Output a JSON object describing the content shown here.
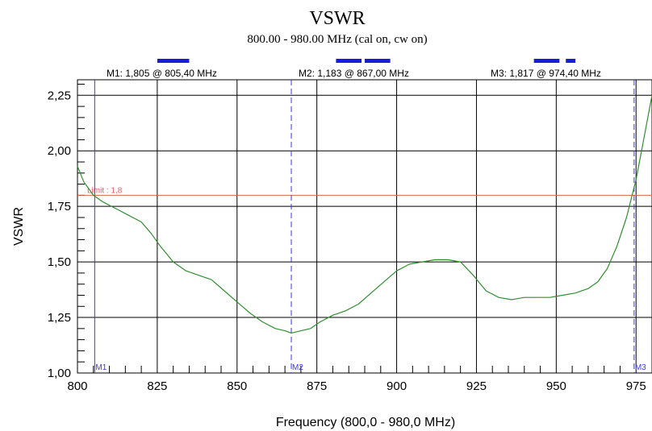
{
  "chart_data": {
    "type": "line",
    "title": "VSWR",
    "subtitle": "800.00 - 980.00 MHz (cal on, cw on)",
    "xlabel": "Frequency (800,0 - 980,0 MHz)",
    "ylabel": "VSWR",
    "xlim": [
      800,
      980
    ],
    "ylim": [
      1.0,
      2.32
    ],
    "x_ticks": [
      "800",
      "825",
      "850",
      "875",
      "900",
      "925",
      "950",
      "975"
    ],
    "x_tick_values": [
      800,
      825,
      850,
      875,
      900,
      925,
      950,
      975
    ],
    "y_ticks": [
      "1,00",
      "1,25",
      "1,50",
      "1,75",
      "2,00",
      "2,25"
    ],
    "y_tick_values": [
      1.0,
      1.25,
      1.5,
      1.75,
      2.0,
      2.25
    ],
    "grid": true,
    "limit": {
      "label": "Limit : 1,8",
      "value": 1.8,
      "color": "#e06060"
    },
    "markers": [
      {
        "name": "M1",
        "freq": 805.4,
        "vswr": 1.805,
        "header": "M1: 1,805  @ 805,40 MHz",
        "style": "solid"
      },
      {
        "name": "M2",
        "freq": 867.0,
        "vswr": 1.183,
        "header": "M2: 1,183  @ 867,00 MHz",
        "style": "dashed"
      },
      {
        "name": "M3",
        "freq": 974.4,
        "vswr": 1.817,
        "header": "M3: 1,817  @ 974,40 MHz",
        "style": "dashed"
      }
    ],
    "bands": [
      {
        "start": 825,
        "end": 835
      },
      {
        "start": 881,
        "end": 889
      },
      {
        "start": 890,
        "end": 898
      },
      {
        "start": 943,
        "end": 951
      },
      {
        "start": 953,
        "end": 956
      }
    ],
    "series": [
      {
        "color": "#2f8f2f",
        "x": [
          800,
          802,
          805,
          808,
          812,
          816,
          820,
          823,
          826,
          830,
          834,
          838,
          842,
          846,
          850,
          854,
          858,
          862,
          865,
          867,
          870,
          873,
          876,
          880,
          884,
          888,
          892,
          896,
          900,
          904,
          908,
          912,
          916,
          920,
          924,
          928,
          932,
          936,
          940,
          944,
          948,
          952,
          956,
          960,
          963,
          966,
          969,
          972,
          975,
          977,
          980
        ],
        "values": [
          1.93,
          1.86,
          1.8,
          1.77,
          1.74,
          1.71,
          1.68,
          1.63,
          1.57,
          1.5,
          1.46,
          1.44,
          1.42,
          1.37,
          1.32,
          1.27,
          1.23,
          1.2,
          1.19,
          1.18,
          1.19,
          1.2,
          1.23,
          1.26,
          1.28,
          1.31,
          1.36,
          1.41,
          1.46,
          1.49,
          1.5,
          1.51,
          1.51,
          1.5,
          1.44,
          1.37,
          1.34,
          1.33,
          1.34,
          1.34,
          1.34,
          1.35,
          1.36,
          1.38,
          1.41,
          1.47,
          1.57,
          1.7,
          1.87,
          2.02,
          2.25
        ]
      }
    ]
  }
}
